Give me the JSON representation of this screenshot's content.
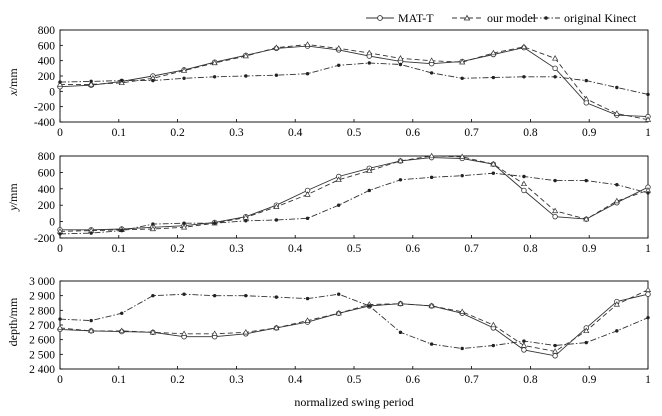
{
  "legend": {
    "position": "top-right",
    "entries": [
      "MAT-T",
      "our model",
      "original Kinect"
    ]
  },
  "x_axis_label": "normalized swing period",
  "chart_data": [
    {
      "type": "line",
      "ylabel": "x/mm",
      "ylabel_main": "x",
      "ylabel_unit": "/mm",
      "xlim": [
        0,
        1
      ],
      "ylim": [
        -400,
        800
      ],
      "xticks": [
        "0",
        "0.1",
        "0.2",
        "0.3",
        "0.4",
        "0.5",
        "0.6",
        "0.7",
        "0.8",
        "0.9",
        "1"
      ],
      "yticks": [
        {
          "v": -400,
          "label": "-400"
        },
        {
          "v": -200,
          "label": "-200"
        },
        {
          "v": 0,
          "label": "0"
        },
        {
          "v": 200,
          "label": "200"
        },
        {
          "v": 400,
          "label": "400"
        },
        {
          "v": 600,
          "label": "600"
        },
        {
          "v": 800,
          "label": "800"
        }
      ],
      "grid": false,
      "series": [
        {
          "name": "MAT-T",
          "x": [
            0,
            0.053,
            0.105,
            0.158,
            0.211,
            0.263,
            0.316,
            0.368,
            0.421,
            0.474,
            0.526,
            0.579,
            0.632,
            0.684,
            0.737,
            0.789,
            0.842,
            0.895,
            0.947,
            1.0
          ],
          "y": [
            60,
            80,
            130,
            200,
            280,
            380,
            470,
            560,
            590,
            540,
            460,
            390,
            360,
            390,
            480,
            570,
            300,
            -150,
            -310,
            -330
          ]
        },
        {
          "name": "our model",
          "x": [
            0,
            0.053,
            0.105,
            0.158,
            0.211,
            0.263,
            0.316,
            0.368,
            0.421,
            0.474,
            0.526,
            0.579,
            0.632,
            0.684,
            0.737,
            0.789,
            0.842,
            0.895,
            0.947,
            1.0
          ],
          "y": [
            90,
            90,
            110,
            170,
            270,
            370,
            460,
            570,
            610,
            560,
            500,
            430,
            400,
            380,
            500,
            580,
            430,
            -100,
            -290,
            -370
          ]
        },
        {
          "name": "original Kinect",
          "x": [
            0,
            0.053,
            0.105,
            0.158,
            0.211,
            0.263,
            0.316,
            0.368,
            0.421,
            0.474,
            0.526,
            0.579,
            0.632,
            0.684,
            0.737,
            0.789,
            0.842,
            0.895,
            0.947,
            1.0
          ],
          "y": [
            120,
            130,
            140,
            140,
            170,
            190,
            200,
            210,
            230,
            340,
            370,
            350,
            240,
            170,
            180,
            190,
            190,
            140,
            50,
            -40
          ]
        }
      ]
    },
    {
      "type": "line",
      "ylabel": "y/mm",
      "ylabel_main": "y",
      "ylabel_unit": "/mm",
      "xlim": [
        0,
        1
      ],
      "ylim": [
        -200,
        800
      ],
      "xticks": [
        "0",
        "0.1",
        "0.2",
        "0.3",
        "0.4",
        "0.5",
        "0.6",
        "0.7",
        "0.8",
        "0.9",
        "1"
      ],
      "yticks": [
        {
          "v": -200,
          "label": "-200"
        },
        {
          "v": 0,
          "label": "0"
        },
        {
          "v": 200,
          "label": "200"
        },
        {
          "v": 400,
          "label": "400"
        },
        {
          "v": 600,
          "label": "600"
        },
        {
          "v": 800,
          "label": "800"
        }
      ],
      "grid": false,
      "series": [
        {
          "name": "MAT-T",
          "x": [
            0,
            0.053,
            0.105,
            0.158,
            0.211,
            0.263,
            0.316,
            0.368,
            0.421,
            0.474,
            0.526,
            0.579,
            0.632,
            0.684,
            0.737,
            0.789,
            0.842,
            0.895,
            0.947,
            1.0
          ],
          "y": [
            -100,
            -100,
            -90,
            -70,
            -50,
            -10,
            60,
            200,
            380,
            550,
            650,
            740,
            780,
            770,
            700,
            380,
            60,
            30,
            230,
            420
          ]
        },
        {
          "name": "our model",
          "x": [
            0,
            0.053,
            0.105,
            0.158,
            0.211,
            0.263,
            0.316,
            0.368,
            0.421,
            0.474,
            0.526,
            0.579,
            0.632,
            0.684,
            0.737,
            0.789,
            0.842,
            0.895,
            0.947,
            1.0
          ],
          "y": [
            -120,
            -110,
            -100,
            -90,
            -70,
            -20,
            50,
            180,
            330,
            510,
            620,
            740,
            800,
            790,
            700,
            460,
            130,
            30,
            250,
            380
          ]
        },
        {
          "name": "original Kinect",
          "x": [
            0,
            0.053,
            0.105,
            0.158,
            0.211,
            0.263,
            0.316,
            0.368,
            0.421,
            0.474,
            0.526,
            0.579,
            0.632,
            0.684,
            0.737,
            0.789,
            0.842,
            0.895,
            0.947,
            1.0
          ],
          "y": [
            -150,
            -140,
            -110,
            -30,
            -20,
            -20,
            10,
            20,
            40,
            200,
            380,
            510,
            540,
            560,
            590,
            550,
            500,
            500,
            450,
            350
          ]
        }
      ]
    },
    {
      "type": "line",
      "ylabel": "depth/mm",
      "xlim": [
        0,
        1
      ],
      "ylim": [
        2400,
        3000
      ],
      "xticks": [
        "0",
        "0.1",
        "0.2",
        "0.3",
        "0.4",
        "0.5",
        "0.6",
        "0.7",
        "0.8",
        "0.9",
        "1"
      ],
      "yticks": [
        {
          "v": 2400,
          "label": "2 400"
        },
        {
          "v": 2500,
          "label": "2 500"
        },
        {
          "v": 2600,
          "label": "2 600"
        },
        {
          "v": 2700,
          "label": "2 700"
        },
        {
          "v": 2800,
          "label": "2 800"
        },
        {
          "v": 2900,
          "label": "2 900"
        },
        {
          "v": 3000,
          "label": "3 000"
        }
      ],
      "grid": false,
      "series": [
        {
          "name": "MAT-T",
          "x": [
            0,
            0.053,
            0.105,
            0.158,
            0.211,
            0.263,
            0.316,
            0.368,
            0.421,
            0.474,
            0.526,
            0.579,
            0.632,
            0.684,
            0.737,
            0.789,
            0.842,
            0.895,
            0.947,
            1.0
          ],
          "y": [
            2670,
            2660,
            2655,
            2650,
            2620,
            2620,
            2640,
            2680,
            2720,
            2780,
            2830,
            2845,
            2830,
            2780,
            2680,
            2530,
            2490,
            2680,
            2860,
            2910
          ]
        },
        {
          "name": "our model",
          "x": [
            0,
            0.053,
            0.105,
            0.158,
            0.211,
            0.263,
            0.316,
            0.368,
            0.421,
            0.474,
            0.526,
            0.579,
            0.632,
            0.684,
            0.737,
            0.789,
            0.842,
            0.895,
            0.947,
            1.0
          ],
          "y": [
            2680,
            2660,
            2660,
            2650,
            2640,
            2640,
            2650,
            2680,
            2730,
            2780,
            2840,
            2845,
            2830,
            2790,
            2700,
            2560,
            2520,
            2660,
            2840,
            2940
          ]
        },
        {
          "name": "original Kinect",
          "x": [
            0,
            0.053,
            0.105,
            0.158,
            0.211,
            0.263,
            0.316,
            0.368,
            0.421,
            0.474,
            0.526,
            0.579,
            0.632,
            0.684,
            0.737,
            0.789,
            0.842,
            0.895,
            0.947,
            1.0
          ],
          "y": [
            2740,
            2730,
            2780,
            2900,
            2910,
            2900,
            2900,
            2890,
            2880,
            2910,
            2830,
            2650,
            2570,
            2540,
            2560,
            2590,
            2560,
            2580,
            2660,
            2750
          ]
        }
      ]
    }
  ]
}
